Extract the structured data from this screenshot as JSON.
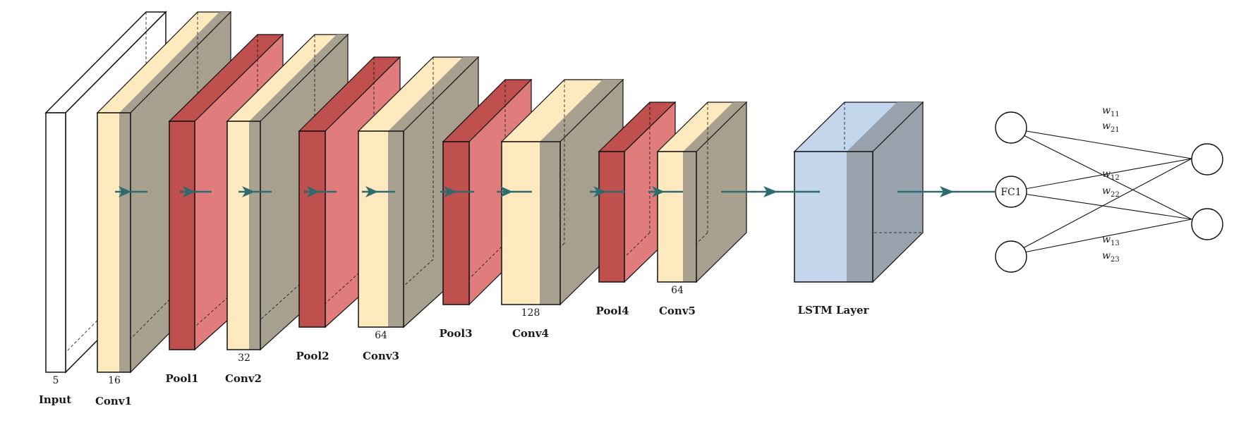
{
  "colors": {
    "input_face": "#ffffff",
    "conv_face": "#ffe9bf",
    "conv_relu": "#a8a08f",
    "pool_face": "#c0504d",
    "pool_side": "#e17c7c",
    "lstm_face": "#c3d6ec",
    "lstm_side": "#98a2ad",
    "arrow": "#2e6b6e",
    "stroke": "#111111"
  },
  "layers": {
    "input": {
      "label": "Input",
      "depth": "5"
    },
    "conv1": {
      "label": "Conv1",
      "depth": "16"
    },
    "pool1": {
      "label": "Pool1"
    },
    "conv2": {
      "label": "Conv2",
      "depth": "32"
    },
    "pool2": {
      "label": "Pool2"
    },
    "conv3": {
      "label": "Conv3",
      "depth": "64"
    },
    "pool3": {
      "label": "Pool3"
    },
    "conv4": {
      "label": "Conv4",
      "depth": "128"
    },
    "pool4": {
      "label": "Pool4"
    },
    "conv5": {
      "label": "Conv5",
      "depth": "64"
    },
    "lstm": {
      "label": "LSTM Layer"
    }
  },
  "fc": {
    "node_label": "FC1",
    "weights": [
      {
        "sym": "w",
        "sub": "11"
      },
      {
        "sym": "w",
        "sub": "21"
      },
      {
        "sym": "w",
        "sub": "12"
      },
      {
        "sym": "w",
        "sub": "22"
      },
      {
        "sym": "w",
        "sub": "13"
      },
      {
        "sym": "w",
        "sub": "23"
      }
    ]
  }
}
